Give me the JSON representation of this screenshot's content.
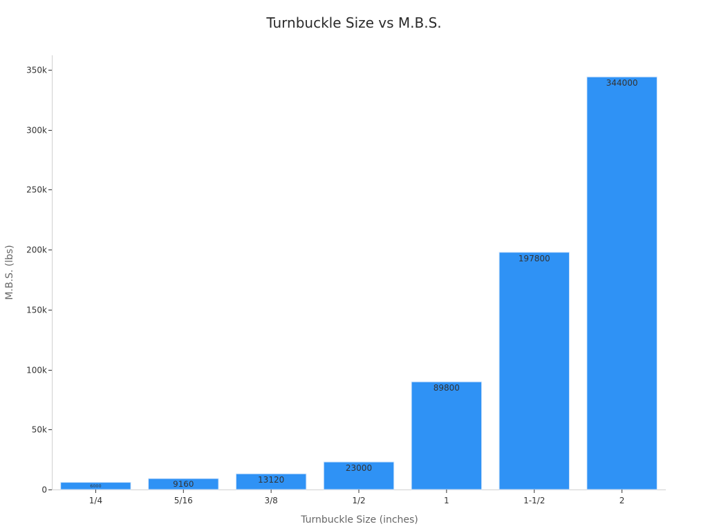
{
  "chart_data": {
    "type": "bar",
    "title": "Turnbuckle Size vs M.B.S.",
    "xlabel": "Turnbuckle Size (inches)",
    "ylabel": "M.B.S. (lbs)",
    "categories": [
      "1/4",
      "5/16",
      "3/8",
      "1/2",
      "1",
      "1-1/2",
      "2"
    ],
    "values": [
      6000,
      9160,
      13120,
      23000,
      89800,
      197800,
      344000
    ],
    "data_labels": [
      "6000",
      "9160",
      "13120",
      "23000",
      "89800",
      "197800",
      "344000"
    ],
    "ylim": [
      0,
      362000
    ],
    "yticks": [
      0,
      50000,
      100000,
      150000,
      200000,
      250000,
      300000,
      350000
    ],
    "ytick_labels": [
      "0",
      "50k",
      "100k",
      "150k",
      "200k",
      "250k",
      "300k",
      "350k"
    ],
    "grid": false,
    "legend": "none",
    "colors": {
      "bar": "#2f92f5"
    }
  }
}
